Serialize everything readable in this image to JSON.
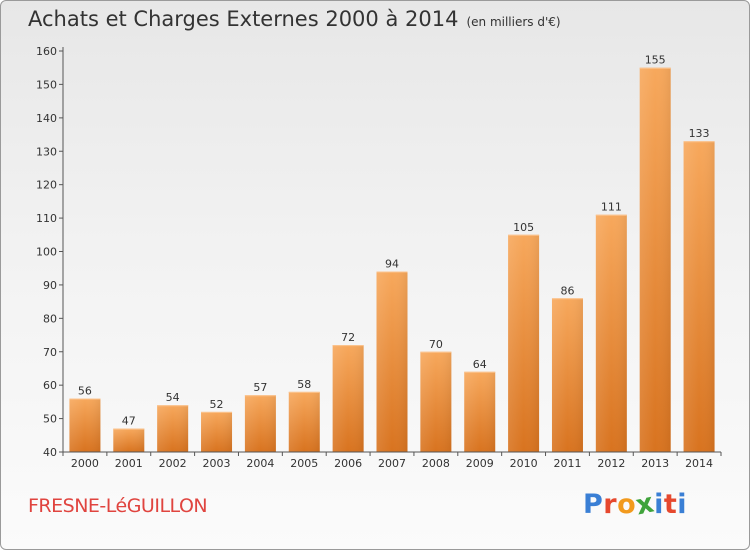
{
  "title": "Achats et Charges Externes 2000 à 2014",
  "subtitle": "(en milliers d'€)",
  "commune": "FRESNE-LéGUILLON",
  "brand": {
    "text": "Proxiti",
    "colors": [
      "#3a7fd5",
      "#e6482e",
      "#f29a1d",
      "#3fa33b",
      "#3a7fd5",
      "#e6482e",
      "#3a7fd5"
    ]
  },
  "colors": {
    "bar_top": "#f7a85c",
    "bar_bottom": "#d8731f",
    "commune": "#e0443f"
  },
  "chart_data": {
    "type": "bar",
    "categories": [
      "2000",
      "2001",
      "2002",
      "2003",
      "2004",
      "2005",
      "2006",
      "2007",
      "2008",
      "2009",
      "2010",
      "2011",
      "2012",
      "2013",
      "2014"
    ],
    "values": [
      56,
      47,
      54,
      52,
      57,
      58,
      72,
      94,
      70,
      64,
      105,
      86,
      111,
      155,
      133
    ],
    "ylim": [
      40,
      160
    ],
    "yticks": [
      40,
      50,
      60,
      70,
      80,
      90,
      100,
      110,
      120,
      130,
      140,
      150,
      160
    ],
    "data_labels": true,
    "grid": false
  }
}
